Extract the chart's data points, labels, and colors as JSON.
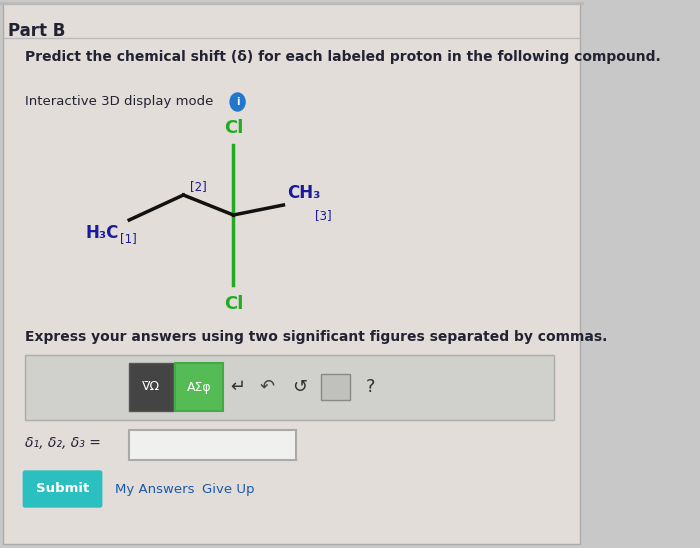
{
  "background_color": "#c8c8c8",
  "inner_bg_color": "#e2ddd8",
  "title": "Part B",
  "subtitle": "Predict the chemical shift (δ) for each labeled proton in the following compound.",
  "interactive_label": "Interactive 3D display mode",
  "express_text": "Express your answers using two significant figures separated by commas.",
  "delta_label": "δ₁, δ₂, δ₃ =",
  "submit_text": "Submit",
  "my_answers_text": "My Answers",
  "give_up_text": "Give Up",
  "submit_color": "#2bbfbf",
  "molecule": {
    "cl_top_label": "Cl",
    "cl_bottom_label": "Cl",
    "h3c_label": "H₃C",
    "label_1": "[1]",
    "ch3_label": "CH₃",
    "label_2": "[2]",
    "label_3": "[3]",
    "black_bond_color": "#111111",
    "green_bond_color": "#22aa22",
    "cl_color": "#22aa22",
    "ch3_color": "#1a1a9a",
    "h3c_color": "#1a1a9a",
    "label_color": "#1a1a9a"
  },
  "toolbar_bg": "#d8d8d8",
  "input_box_color": "#f0f0ee",
  "info_circle_color": "#2277cc",
  "text_color_dark": "#222233"
}
